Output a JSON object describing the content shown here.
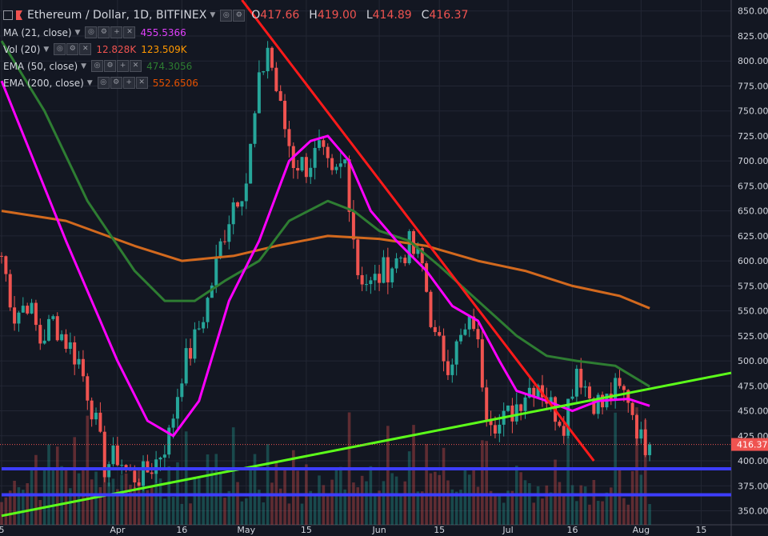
{
  "header": {
    "symbol_title": "Ethereum / Dollar, 1D, BITFINEX",
    "ohlc": [
      {
        "key": "O",
        "value": "417.66"
      },
      {
        "key": "H",
        "value": "419.00"
      },
      {
        "key": "L",
        "value": "414.89"
      },
      {
        "key": "C",
        "value": "416.37"
      }
    ]
  },
  "indicators": [
    {
      "name": "MA (21, close)",
      "values": [
        "455.5366"
      ],
      "colors": [
        "#e040fb"
      ]
    },
    {
      "name": "Vol (20)",
      "values": [
        "12.828K",
        "123.509K"
      ],
      "colors": [
        "#ef5350",
        "#ff9800"
      ]
    },
    {
      "name": "EMA (50, close)",
      "values": [
        "474.3056"
      ],
      "colors": [
        "#2e7d32"
      ]
    },
    {
      "name": "EMA (200, close)",
      "values": [
        "552.6506"
      ],
      "colors": [
        "#e65100"
      ]
    }
  ],
  "colors": {
    "background": "#131722",
    "up": "#26a69a",
    "down": "#ef5350",
    "ma21": "#ff00ff",
    "ema50": "#2e7d32",
    "ema200": "#d2691e",
    "trend_red": "#ff1a1a",
    "trend_green": "#5cff1a",
    "support": "#3d3dff"
  },
  "chart_data": {
    "type": "candlestick",
    "title": "Ethereum / Dollar, 1D, BITFINEX",
    "y_ticks": [
      850,
      825,
      800,
      775,
      750,
      725,
      700,
      675,
      650,
      625,
      600,
      575,
      550,
      525,
      500,
      475,
      450,
      425,
      400,
      375,
      350
    ],
    "ylim": [
      336,
      861
    ],
    "x_tick_labels": [
      {
        "label": "5",
        "date": "2018-03-05"
      },
      {
        "label": "Apr",
        "date": "2018-04-01"
      },
      {
        "label": "16",
        "date": "2018-04-16"
      },
      {
        "label": "May",
        "date": "2018-05-01"
      },
      {
        "label": "15",
        "date": "2018-05-15"
      },
      {
        "label": "Jun",
        "date": "2018-06-01"
      },
      {
        "label": "15",
        "date": "2018-06-15"
      },
      {
        "label": "Jul",
        "date": "2018-07-01"
      },
      {
        "label": "16",
        "date": "2018-07-16"
      },
      {
        "label": "Aug",
        "date": "2018-08-01"
      },
      {
        "label": "15",
        "date": "2018-08-15"
      }
    ],
    "xlim": [
      "2018-03-05",
      "2018-08-22"
    ],
    "last_price": "416.37",
    "closes": [
      {
        "date": "2018-03-05",
        "close": 605
      },
      {
        "date": "2018-03-08",
        "close": 545
      },
      {
        "date": "2018-03-11",
        "close": 560
      },
      {
        "date": "2018-03-14",
        "close": 520
      },
      {
        "date": "2018-03-17",
        "close": 540
      },
      {
        "date": "2018-03-20",
        "close": 520
      },
      {
        "date": "2018-03-23",
        "close": 500
      },
      {
        "date": "2018-03-26",
        "close": 455
      },
      {
        "date": "2018-03-29",
        "close": 395
      },
      {
        "date": "2018-04-01",
        "close": 405
      },
      {
        "date": "2018-04-04",
        "close": 385
      },
      {
        "date": "2018-04-07",
        "close": 385
      },
      {
        "date": "2018-04-10",
        "close": 400
      },
      {
        "date": "2018-04-13",
        "close": 425
      },
      {
        "date": "2018-04-16",
        "close": 490
      },
      {
        "date": "2018-04-19",
        "close": 520
      },
      {
        "date": "2018-04-22",
        "close": 560
      },
      {
        "date": "2018-04-25",
        "close": 615
      },
      {
        "date": "2018-04-28",
        "close": 660
      },
      {
        "date": "2018-05-01",
        "close": 680
      },
      {
        "date": "2018-05-04",
        "close": 775
      },
      {
        "date": "2018-05-06",
        "close": 815
      },
      {
        "date": "2018-05-09",
        "close": 750
      },
      {
        "date": "2018-05-12",
        "close": 700
      },
      {
        "date": "2018-05-15",
        "close": 695
      },
      {
        "date": "2018-05-18",
        "close": 710
      },
      {
        "date": "2018-05-21",
        "close": 680
      },
      {
        "date": "2018-05-24",
        "close": 700
      },
      {
        "date": "2018-05-27",
        "close": 590
      },
      {
        "date": "2018-05-30",
        "close": 575
      },
      {
        "date": "2018-06-02",
        "close": 590
      },
      {
        "date": "2018-06-05",
        "close": 600
      },
      {
        "date": "2018-06-08",
        "close": 615
      },
      {
        "date": "2018-06-11",
        "close": 595
      },
      {
        "date": "2018-06-14",
        "close": 520
      },
      {
        "date": "2018-06-17",
        "close": 500
      },
      {
        "date": "2018-06-20",
        "close": 520
      },
      {
        "date": "2018-06-23",
        "close": 540
      },
      {
        "date": "2018-06-26",
        "close": 455
      },
      {
        "date": "2018-06-29",
        "close": 435
      },
      {
        "date": "2018-07-02",
        "close": 450
      },
      {
        "date": "2018-07-05",
        "close": 470
      },
      {
        "date": "2018-07-08",
        "close": 480
      },
      {
        "date": "2018-07-11",
        "close": 455
      },
      {
        "date": "2018-07-14",
        "close": 440
      },
      {
        "date": "2018-07-17",
        "close": 495
      },
      {
        "date": "2018-07-20",
        "close": 465
      },
      {
        "date": "2018-07-23",
        "close": 455
      },
      {
        "date": "2018-07-26",
        "close": 470
      },
      {
        "date": "2018-07-29",
        "close": 465
      },
      {
        "date": "2018-08-01",
        "close": 420
      },
      {
        "date": "2018-08-03",
        "close": 416.37
      }
    ],
    "series": [
      {
        "name": "MA (21, close)",
        "points": [
          {
            "date": "2018-03-05",
            "value": 780
          },
          {
            "date": "2018-03-20",
            "value": 620
          },
          {
            "date": "2018-04-01",
            "value": 500
          },
          {
            "date": "2018-04-08",
            "value": 440
          },
          {
            "date": "2018-04-14",
            "value": 425
          },
          {
            "date": "2018-04-20",
            "value": 460
          },
          {
            "date": "2018-04-27",
            "value": 560
          },
          {
            "date": "2018-05-04",
            "value": 620
          },
          {
            "date": "2018-05-11",
            "value": 700
          },
          {
            "date": "2018-05-16",
            "value": 720
          },
          {
            "date": "2018-05-20",
            "value": 725
          },
          {
            "date": "2018-05-25",
            "value": 700
          },
          {
            "date": "2018-05-30",
            "value": 650
          },
          {
            "date": "2018-06-05",
            "value": 620
          },
          {
            "date": "2018-06-12",
            "value": 590
          },
          {
            "date": "2018-06-18",
            "value": 555
          },
          {
            "date": "2018-06-24",
            "value": 540
          },
          {
            "date": "2018-06-29",
            "value": 500
          },
          {
            "date": "2018-07-03",
            "value": 470
          },
          {
            "date": "2018-07-10",
            "value": 460
          },
          {
            "date": "2018-07-16",
            "value": 450
          },
          {
            "date": "2018-07-22",
            "value": 460
          },
          {
            "date": "2018-07-29",
            "value": 462
          },
          {
            "date": "2018-08-03",
            "value": 455
          }
        ]
      },
      {
        "name": "EMA (50, close)",
        "points": [
          {
            "date": "2018-03-05",
            "value": 820
          },
          {
            "date": "2018-03-15",
            "value": 750
          },
          {
            "date": "2018-03-25",
            "value": 660
          },
          {
            "date": "2018-04-05",
            "value": 590
          },
          {
            "date": "2018-04-12",
            "value": 560
          },
          {
            "date": "2018-04-19",
            "value": 560
          },
          {
            "date": "2018-04-26",
            "value": 580
          },
          {
            "date": "2018-05-04",
            "value": 600
          },
          {
            "date": "2018-05-11",
            "value": 640
          },
          {
            "date": "2018-05-20",
            "value": 660
          },
          {
            "date": "2018-05-26",
            "value": 650
          },
          {
            "date": "2018-06-01",
            "value": 630
          },
          {
            "date": "2018-06-08",
            "value": 620
          },
          {
            "date": "2018-06-15",
            "value": 595
          },
          {
            "date": "2018-06-24",
            "value": 560
          },
          {
            "date": "2018-07-03",
            "value": 525
          },
          {
            "date": "2018-07-10",
            "value": 505
          },
          {
            "date": "2018-07-17",
            "value": 500
          },
          {
            "date": "2018-07-26",
            "value": 495
          },
          {
            "date": "2018-08-03",
            "value": 474.31
          }
        ]
      },
      {
        "name": "EMA (200, close)",
        "points": [
          {
            "date": "2018-03-05",
            "value": 650
          },
          {
            "date": "2018-03-20",
            "value": 640
          },
          {
            "date": "2018-04-05",
            "value": 615
          },
          {
            "date": "2018-04-16",
            "value": 600
          },
          {
            "date": "2018-04-28",
            "value": 605
          },
          {
            "date": "2018-05-08",
            "value": 615
          },
          {
            "date": "2018-05-20",
            "value": 625
          },
          {
            "date": "2018-06-01",
            "value": 622
          },
          {
            "date": "2018-06-12",
            "value": 615
          },
          {
            "date": "2018-06-24",
            "value": 600
          },
          {
            "date": "2018-07-05",
            "value": 590
          },
          {
            "date": "2018-07-16",
            "value": 575
          },
          {
            "date": "2018-07-27",
            "value": 565
          },
          {
            "date": "2018-08-03",
            "value": 552.65
          }
        ]
      }
    ],
    "trendlines": [
      {
        "name": "descending-resistance",
        "from": {
          "date": "2018-04-30",
          "value": 861
        },
        "to": {
          "date": "2018-07-21",
          "value": 400
        }
      },
      {
        "name": "ascending-support",
        "from": {
          "date": "2018-03-05",
          "value": 345
        },
        "to": {
          "date": "2018-08-22",
          "value": 488
        }
      },
      {
        "name": "horizontal-support-1",
        "from": {
          "date": "2018-03-05",
          "value": 392
        },
        "to": {
          "date": "2018-08-22",
          "value": 392
        }
      },
      {
        "name": "horizontal-support-2",
        "from": {
          "date": "2018-03-05",
          "value": 366
        },
        "to": {
          "date": "2018-08-22",
          "value": 366
        }
      }
    ],
    "grid": true
  }
}
